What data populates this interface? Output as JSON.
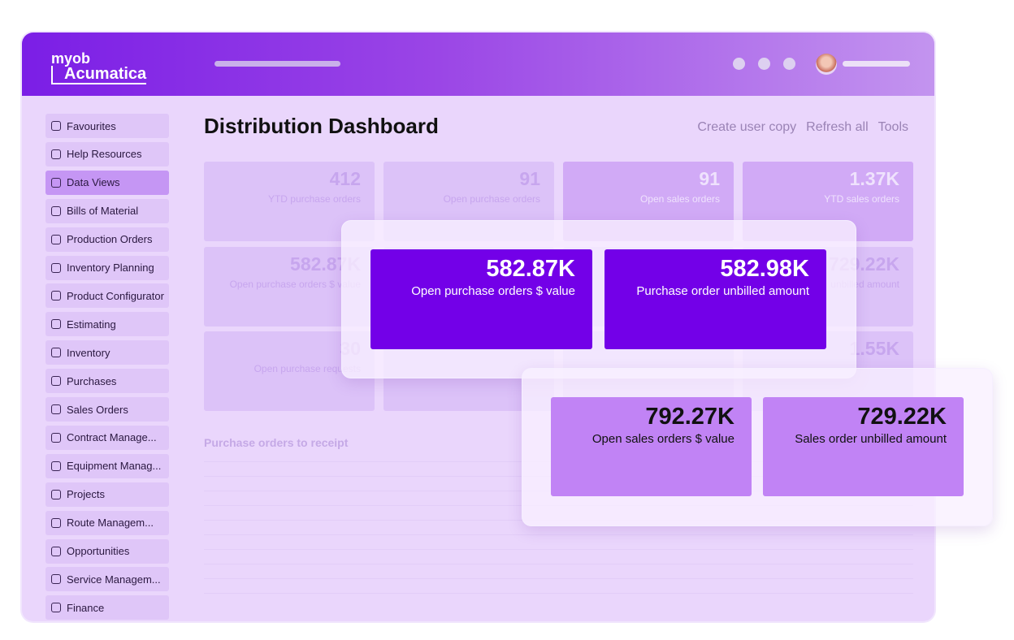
{
  "logo": {
    "line1": "myob",
    "line2": "Acumatica"
  },
  "sidebar": {
    "items": [
      "Favourites",
      "Help Resources",
      "Data Views",
      "Bills of Material",
      "Production Orders",
      "Inventory Planning",
      "Product Configurator",
      "Estimating",
      "Inventory",
      "Purchases",
      "Sales Orders",
      "Contract Manage...",
      "Equipment Manag...",
      "Projects",
      "Route Managem...",
      "Opportunities",
      "Service Managem...",
      "Finance"
    ],
    "active": 2
  },
  "header": {
    "title": "Distribution Dashboard",
    "actions": [
      "Create user copy",
      "Refresh all",
      "Tools"
    ]
  },
  "tiles": [
    {
      "value": "412",
      "label": "YTD purchase orders"
    },
    {
      "value": "91",
      "label": "Open purchase orders"
    },
    {
      "value": "91",
      "label": "Open sales orders"
    },
    {
      "value": "1.37K",
      "label": "YTD sales orders"
    },
    {
      "value": "582.87K",
      "label": "Open purchase orders $ value"
    },
    {},
    {},
    {
      "value": "729.22K",
      "label": "unbilled amount"
    },
    {
      "value": "30",
      "label": "Open purchase requests"
    },
    {},
    {},
    {
      "value": "1.55K"
    }
  ],
  "section": {
    "title": "Purchase orders to receipt"
  },
  "overlay_top": {
    "cards": [
      {
        "value": "582.87K",
        "label": "Open purchase orders $ value"
      },
      {
        "value": "582.98K",
        "label": "Purchase order unbilled amount"
      }
    ]
  },
  "overlay_bottom": {
    "cards": [
      {
        "value": "792.27K",
        "label": "Open sales orders $ value"
      },
      {
        "value": "729.22K",
        "label": "Sales order unbilled amount"
      }
    ]
  }
}
